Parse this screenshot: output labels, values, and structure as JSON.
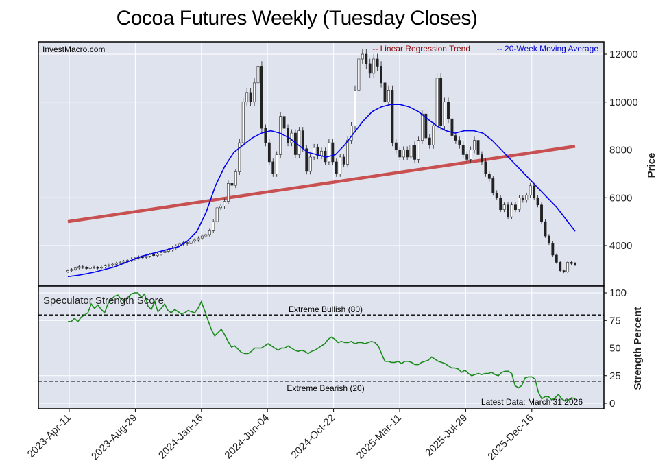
{
  "title": "Cocoa Futures Weekly (Tuesday Closes)",
  "top_panel": {
    "source": "InvestMacro.com",
    "legend_regression": "-- Linear Regression Trend",
    "legend_ma": "-- 20-Week Moving Average",
    "ylabel": "Price"
  },
  "bottom_panel": {
    "title": "Speculator Strength Score",
    "ylabel": "Strength Percent",
    "bullish_label": "Extreme Bullish (80)",
    "bearish_label": "Extreme Bearish (20)",
    "latest_label": "Latest Data: March 31 2026"
  },
  "colors": {
    "candle_up": "#ffffff",
    "candle_down": "#222222",
    "regression": "#c85050",
    "moving_average": "#0000ee",
    "strength": "#1a8a1a",
    "panel_bg": "#dfe3ee",
    "regression_text": "#8b0000",
    "ma_text": "#0000cc"
  },
  "chart_data": [
    {
      "type": "candlestick",
      "x_ticks": [
        "2023-Apr-11",
        "2023-Aug-29",
        "2024-Jan-16",
        "2024-Jun-04",
        "2024-Oct-22",
        "2025-Mar-11",
        "2025-Jul-29",
        "2025-Dec-16"
      ],
      "y_ticks": [
        4000,
        6000,
        8000,
        10000,
        12000
      ],
      "ylim": [
        1500,
        12500
      ],
      "closes": [
        2950,
        3000,
        3060,
        3120,
        3080,
        3040,
        3100,
        3080,
        3060,
        3100,
        3150,
        3180,
        3220,
        3260,
        3300,
        3340,
        3380,
        3440,
        3480,
        3520,
        3500,
        3560,
        3620,
        3580,
        3650,
        3700,
        3760,
        3820,
        3900,
        3980,
        4060,
        4120,
        4080,
        4180,
        4230,
        4310,
        4400,
        4460,
        4620,
        5000,
        5580,
        5650,
        5850,
        6600,
        6520,
        7080,
        8300,
        10000,
        10400,
        10000,
        10800,
        11500,
        8900,
        8300,
        7500,
        7000,
        7800,
        9400,
        8900,
        8300,
        8700,
        7800,
        8800,
        8050,
        7100,
        7700,
        8100,
        7750,
        7950,
        7500,
        8300,
        7500,
        7000,
        7700,
        7400,
        8400,
        9000,
        10500,
        11800,
        12000,
        11600,
        11200,
        11800,
        11500,
        10800,
        10000,
        10500,
        8300,
        8000,
        7700,
        8000,
        7700,
        8200,
        7600,
        8400,
        9500,
        8500,
        8200,
        9000,
        11000,
        9000,
        10000,
        9300,
        8600,
        8400,
        8200,
        7800,
        7600,
        8000,
        8400,
        7800,
        7500,
        7000,
        6800,
        6200,
        6000,
        5500,
        5700,
        5200,
        5700,
        5500,
        6000,
        5900,
        6100,
        6500,
        6000,
        5700,
        5000,
        4400,
        4100,
        3600,
        3300,
        2950,
        2900,
        3300,
        3250,
        3200
      ],
      "regression": [
        5000,
        8150
      ],
      "moving_average": [
        2700,
        2750,
        2820,
        2900,
        3000,
        3100,
        3250,
        3400,
        3550,
        3650,
        3750,
        3850,
        3950,
        4200,
        4600,
        5400,
        6500,
        7300,
        7900,
        8200,
        8500,
        8700,
        8800,
        8700,
        8500,
        8200,
        7900,
        7800,
        7700,
        7800,
        8200,
        8700,
        9200,
        9600,
        9800,
        9900,
        9900,
        9800,
        9600,
        9300,
        9000,
        8800,
        8700,
        8800,
        8800,
        8700,
        8400,
        8000,
        7600,
        7200,
        6800,
        6400,
        6000,
        5600,
        5100,
        4600
      ],
      "latest_date": "March 31 2026"
    },
    {
      "type": "line",
      "title": "Speculator Strength Score",
      "ylabel": "Strength Percent",
      "y_ticks": [
        0,
        25,
        50,
        75,
        100
      ],
      "ylim": [
        -5,
        105
      ],
      "reference_lines": [
        {
          "value": 80,
          "label": "Extreme Bullish (80)"
        },
        {
          "value": 50,
          "label": ""
        },
        {
          "value": 20,
          "label": "Extreme Bearish (20)"
        }
      ],
      "values": [
        74,
        74,
        77,
        74,
        78,
        80,
        82,
        90,
        86,
        89,
        85,
        82,
        90,
        94,
        97,
        98,
        94,
        92,
        96,
        99,
        100,
        100,
        96,
        99,
        88,
        85,
        92,
        83,
        86,
        90,
        84,
        82,
        85,
        83,
        81,
        82,
        84,
        83,
        82,
        86,
        92,
        84,
        75,
        67,
        61,
        64,
        67,
        62,
        56,
        51,
        52,
        49,
        46,
        45,
        45,
        47,
        50,
        50,
        50,
        52,
        54,
        52,
        50,
        48,
        50,
        50,
        52,
        50,
        48,
        47,
        48,
        47,
        45,
        47,
        48,
        50,
        52,
        54,
        58,
        60,
        58,
        55,
        56,
        55,
        55,
        56,
        54,
        55,
        55,
        54,
        55,
        56,
        55,
        52,
        45,
        38,
        38,
        37,
        37,
        38,
        36,
        38,
        38,
        37,
        35,
        35,
        37,
        38,
        39,
        42,
        40,
        38,
        37,
        36,
        34,
        32,
        32,
        31,
        28,
        30,
        27,
        25,
        26,
        27,
        26,
        27,
        27,
        28,
        26,
        25,
        28,
        29,
        29,
        27,
        16,
        14,
        16,
        23,
        24,
        24,
        22,
        10,
        4,
        6,
        6,
        3,
        5,
        8,
        4,
        2,
        3,
        5,
        4
      ]
    }
  ]
}
